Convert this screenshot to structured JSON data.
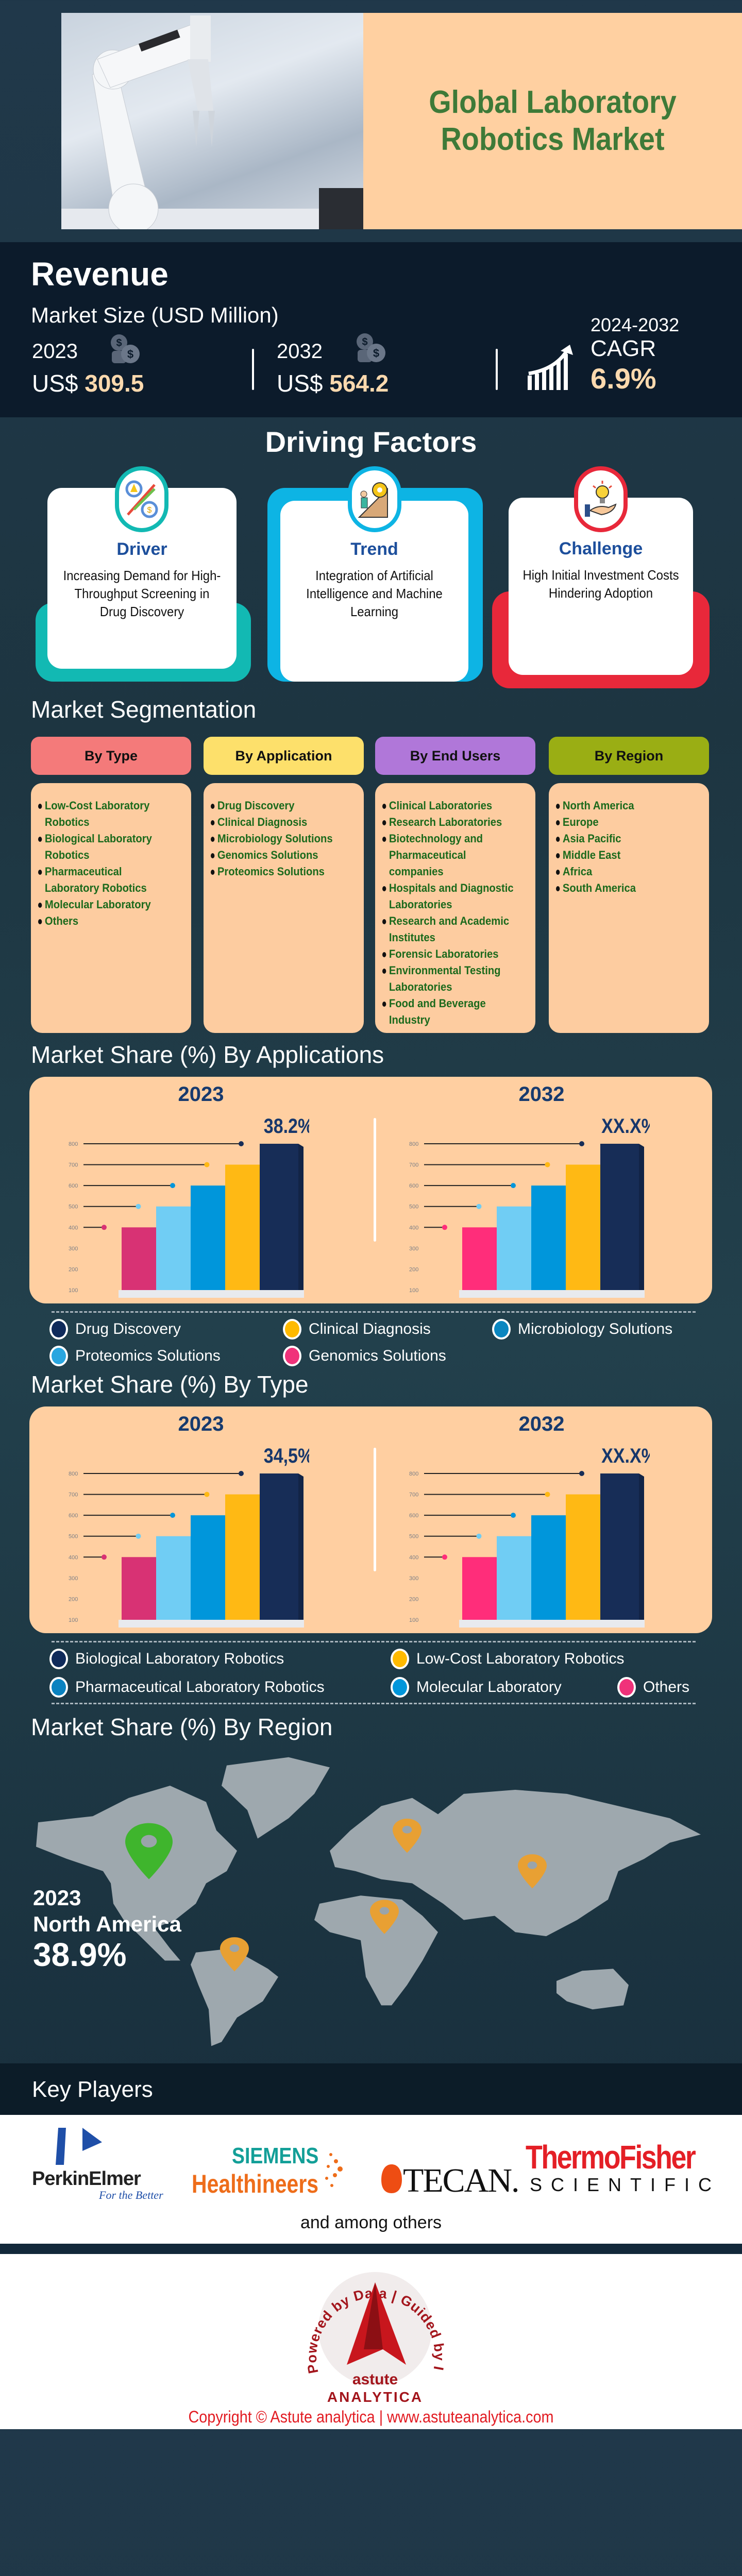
{
  "header": {
    "title_line1": "Global Laboratory",
    "title_line2": "Robotics Market"
  },
  "revenue": {
    "heading": "Revenue",
    "subheading": "Market Size (USD Million)",
    "items": [
      {
        "year": "2023",
        "prefix": "US$",
        "value": "309.5",
        "icon": "coins-icon"
      },
      {
        "year": "2032",
        "prefix": "US$",
        "value": "564.2",
        "icon": "coins-icon"
      }
    ],
    "cagr": {
      "period": "2024-2032",
      "label": "CAGR",
      "value": "6.9%",
      "icon": "growth-chart-icon"
    }
  },
  "driving_factors": {
    "heading": "Driving Factors",
    "cards": [
      {
        "title": "Driver",
        "text": "Increasing Demand for High-Throughput Screening in Drug Discovery",
        "color": "#12b9b3",
        "icon": "gears-arrows-icon"
      },
      {
        "title": "Trend",
        "text": "Integration of Artificial Intelligence and Machine Learning",
        "color": "#0db4e4",
        "icon": "person-pushing-gear-icon"
      },
      {
        "title": "Challenge",
        "text": "High Initial Investment Costs Hindering Adoption",
        "color": "#e8283a",
        "icon": "lightbulb-hand-icon"
      }
    ]
  },
  "segmentation": {
    "heading": "Market Segmentation",
    "columns": [
      {
        "label": "By Type",
        "color": "#f47a7a",
        "items": [
          "Low-Cost Laboratory Robotics",
          "Biological Laboratory Robotics",
          "Pharmaceutical Laboratory Robotics",
          "Molecular Laboratory",
          "Others"
        ]
      },
      {
        "label": "By Application",
        "color": "#fde06b",
        "items": [
          "Drug Discovery",
          "Clinical Diagnosis",
          "Microbiology Solutions",
          "Genomics Solutions",
          "Proteomics Solutions"
        ]
      },
      {
        "label": "By End Users",
        "color": "#b077d9",
        "items": [
          "Clinical Laboratories",
          "Research Laboratories",
          "Biotechnology and Pharmaceutical companies",
          "Hospitals and Diagnostic Laboratories",
          "Research and Academic Institutes",
          "Forensic Laboratories",
          "Environmental Testing Laboratories",
          "Food and Beverage Industry"
        ]
      },
      {
        "label": "By Region",
        "color": "#9aae14",
        "items": [
          "North America",
          "Europe",
          "Asia Pacific",
          "Middle East",
          "Africa",
          "South America"
        ]
      }
    ]
  },
  "chart_data": [
    {
      "type": "bar",
      "title": "Market Share (%) By Applications",
      "yticks": [
        100,
        200,
        300,
        400,
        500,
        600,
        700,
        800
      ],
      "ylim": [
        100,
        800
      ],
      "categories": [
        "Genomics Solutions",
        "Proteomics Solutions",
        "Microbiology Solutions",
        "Clinical Diagnosis",
        "Drug Discovery"
      ],
      "colors": [
        "#d83274",
        "#70cdf4",
        "#0096db",
        "#ffb914",
        "#172d57"
      ],
      "legend_colors": [
        "#f0327a",
        "#29a6e0",
        "#0a86c0",
        "#ffba00",
        "#0f2a5a"
      ],
      "charts": [
        {
          "year": "2023",
          "values": [
            400,
            500,
            600,
            700,
            800
          ],
          "highlight_label": "38.2%"
        },
        {
          "year": "2032",
          "values": [
            400,
            500,
            600,
            700,
            800
          ],
          "highlight_label": "XX.X%"
        }
      ]
    },
    {
      "type": "bar",
      "title": "Market Share (%) By Type",
      "yticks": [
        100,
        200,
        300,
        400,
        500,
        600,
        700,
        800
      ],
      "ylim": [
        100,
        800
      ],
      "categories": [
        "Others",
        "Molecular Laboratory",
        "Pharmaceutical Laboratory Robotics",
        "Low-Cost Laboratory Robotics",
        "Biological Laboratory Robotics"
      ],
      "colors": [
        "#d83274",
        "#70cdf4",
        "#0096db",
        "#ffb914",
        "#172d57"
      ],
      "legend_colors": [
        "#f0327a",
        "#0096db",
        "#0a82c0",
        "#ffba00",
        "#0f2a5a"
      ],
      "charts": [
        {
          "year": "2023",
          "values": [
            400,
            500,
            600,
            700,
            800
          ],
          "highlight_label": "34,5%"
        },
        {
          "year": "2032",
          "values": [
            400,
            500,
            600,
            700,
            800
          ],
          "highlight_label": "XX.X%"
        }
      ]
    }
  ],
  "region": {
    "heading": "Market Share (%) By Region",
    "year": "2023",
    "leader": "North America",
    "share": "38.9%",
    "pin_colors": {
      "leader": "#3fb52d",
      "others": "#e8a033"
    }
  },
  "key_players": {
    "heading": "Key Players",
    "logos": [
      {
        "name": "PerkinElmer",
        "tagline": "For the Better"
      },
      {
        "name": "SIEMENS",
        "sub": "Healthineers"
      },
      {
        "name": "TECAN."
      },
      {
        "name": "ThermoFisher",
        "sub": "SCIENTIFIC"
      }
    ],
    "note": "and among others"
  },
  "footer": {
    "logo_ring": "Powered by Data | Guided by Intelligence",
    "logo_name1": "astute",
    "logo_name2": "ANALYTICA",
    "copyright": "Copyright © Astute analytica | www.astuteanalytica.com"
  }
}
